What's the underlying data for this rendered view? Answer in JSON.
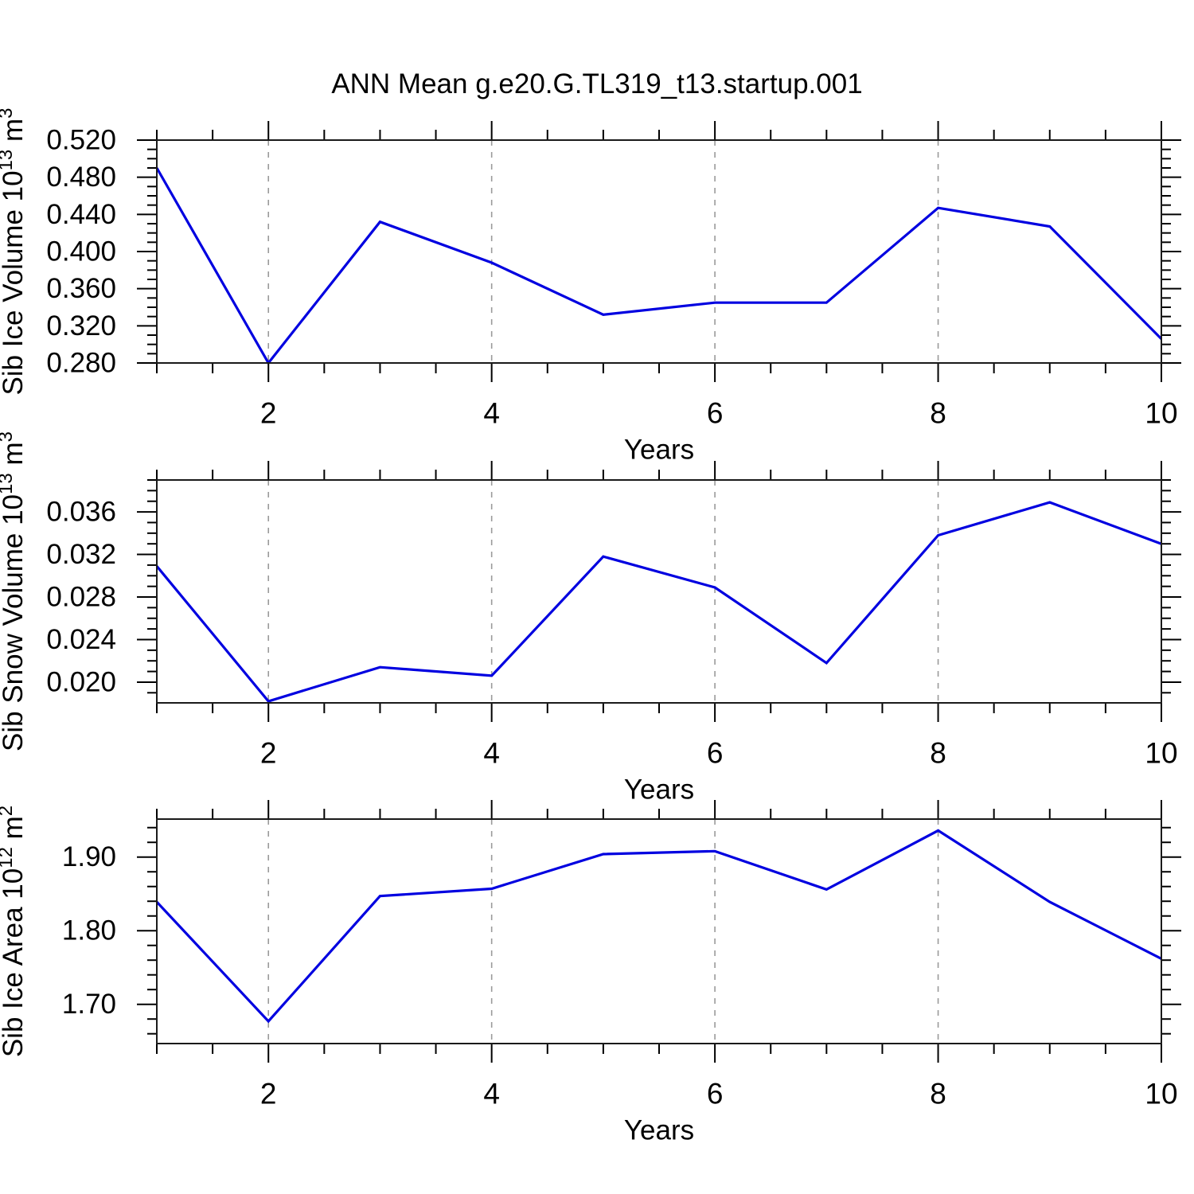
{
  "header": {
    "title": "ANN Mean g.e20.G.TL319_t13.startup.001"
  },
  "chart_data": {
    "type": "line",
    "figure_title": "ANN Mean g.e20.G.TL319_t13.startup.001",
    "line_color": "#0000e0",
    "grid_color": "#9a9a9a",
    "x": [
      1,
      2,
      3,
      4,
      5,
      6,
      7,
      8,
      9,
      10
    ],
    "xlabel": "Years",
    "xlim": [
      1,
      10
    ],
    "xticks": {
      "major": [
        2,
        4,
        6,
        8,
        10
      ],
      "labels": [
        "2",
        "4",
        "6",
        "8",
        "10"
      ],
      "minor_step": 0.5
    },
    "panels": [
      {
        "name": "sib-ice-volume",
        "ylabel": "Sib Ice Volume 10^13 m^3",
        "ylabel_rich": [
          [
            "Sib Ice Volume 10",
            0
          ],
          [
            "13",
            1
          ],
          [
            " m",
            0
          ],
          [
            "3",
            1
          ]
        ],
        "values": [
          0.49,
          0.28,
          0.432,
          0.388,
          0.332,
          0.345,
          0.345,
          0.447,
          0.427,
          0.306
        ],
        "ylim": [
          0.28,
          0.52
        ],
        "yticks": [
          0.28,
          0.32,
          0.36,
          0.4,
          0.44,
          0.48,
          0.52
        ],
        "ytick_labels": [
          "0.280",
          "0.320",
          "0.360",
          "0.400",
          "0.440",
          "0.480",
          "0.520"
        ],
        "ytick_minor_step": 0.01,
        "grid_x": [
          2,
          4,
          6,
          8
        ],
        "xlabel": "Years"
      },
      {
        "name": "sib-snow-volume",
        "ylabel": "Sib Snow Volume 10^13 m^3",
        "ylabel_rich": [
          [
            "Sib Snow Volume 10",
            0
          ],
          [
            "13",
            1
          ],
          [
            " m",
            0
          ],
          [
            "3",
            1
          ]
        ],
        "values": [
          0.0309,
          0.0182,
          0.0214,
          0.0206,
          0.0318,
          0.0289,
          0.0218,
          0.0338,
          0.0369,
          0.033
        ],
        "ylim": [
          0.01805,
          0.039
        ],
        "yticks": [
          0.02,
          0.024,
          0.028,
          0.032,
          0.036
        ],
        "ytick_labels": [
          "0.020",
          "0.024",
          "0.028",
          "0.032",
          "0.036"
        ],
        "ytick_minor_step": 0.001,
        "grid_x": [
          2,
          4,
          6,
          8
        ],
        "xlabel": "Years"
      },
      {
        "name": "sib-ice-area",
        "ylabel": "Sib Ice Area 10^12 m^2",
        "ylabel_rich": [
          [
            "Sib Ice Area 10",
            0
          ],
          [
            "12",
            1
          ],
          [
            " m",
            0
          ],
          [
            "2",
            1
          ]
        ],
        "values": [
          1.839,
          1.677,
          1.847,
          1.857,
          1.904,
          1.908,
          1.856,
          1.936,
          1.839,
          1.762
        ],
        "ylim": [
          1.6467,
          1.9516
        ],
        "yticks": [
          1.7,
          1.8,
          1.9
        ],
        "ytick_labels": [
          "1.70",
          "1.80",
          "1.90"
        ],
        "ytick_minor_step": 0.02,
        "grid_x": [
          2,
          4,
          6,
          8
        ],
        "xlabel": "Years"
      }
    ]
  }
}
